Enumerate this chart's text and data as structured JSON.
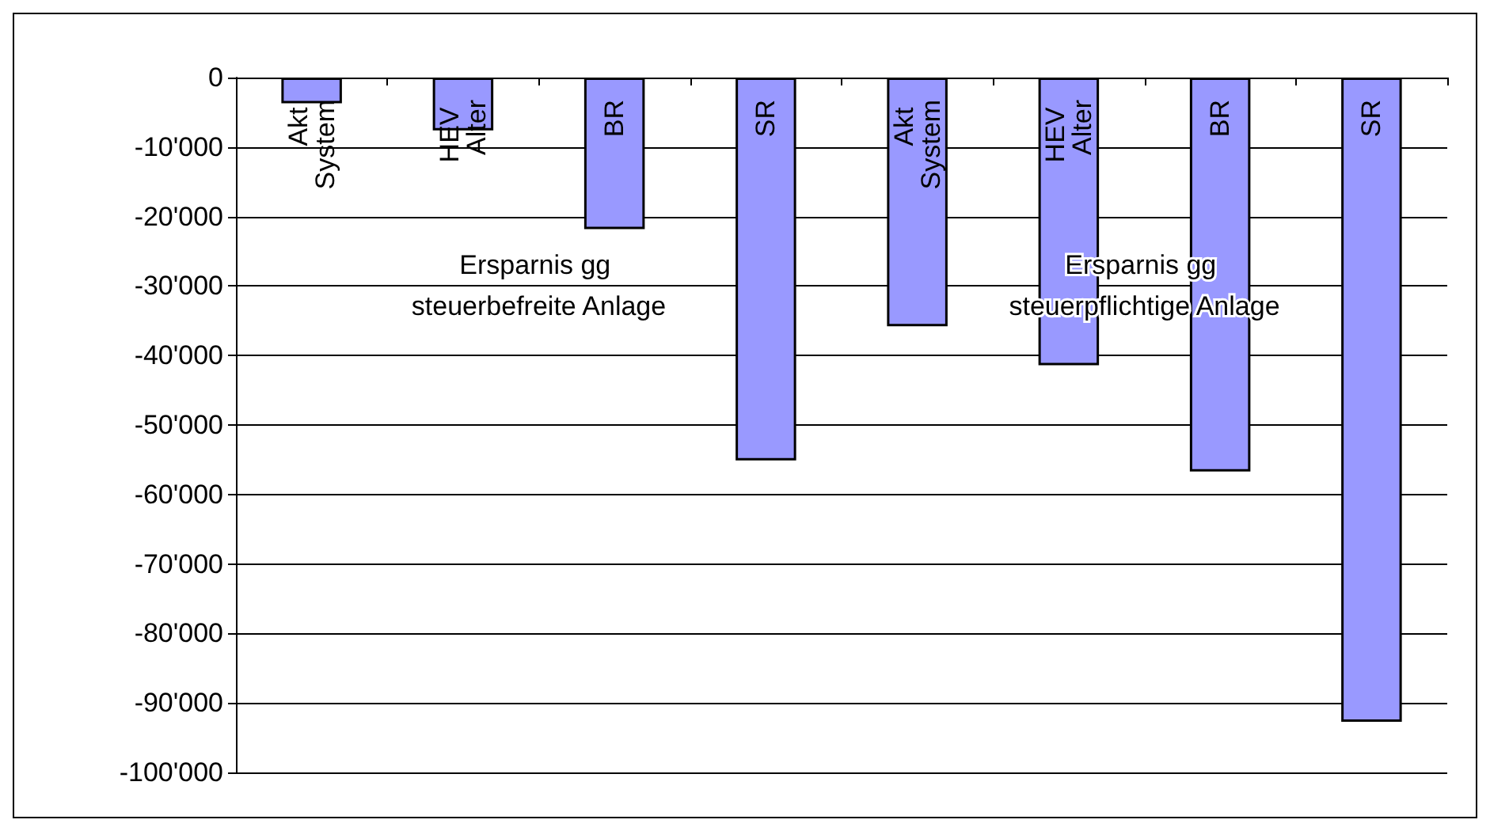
{
  "chart_data": {
    "type": "bar",
    "categories": [
      "Akt System",
      "HEV Alter",
      "BR",
      "SR",
      "Akt System",
      "HEV Alter",
      "BR",
      "SR"
    ],
    "values": [
      -3700,
      -7600,
      -21800,
      -55100,
      -35800,
      -41400,
      -56700,
      -92700
    ],
    "color": "#9999ff",
    "ylim": [
      -100000,
      0
    ],
    "yticks": [
      {
        "value": -100000,
        "label": "-100'000"
      },
      {
        "value": -90000,
        "label": "-90'000"
      },
      {
        "value": -80000,
        "label": "-80'000"
      },
      {
        "value": -70000,
        "label": "-70'000"
      },
      {
        "value": -60000,
        "label": "-60'000"
      },
      {
        "value": -50000,
        "label": "-50'000"
      },
      {
        "value": -40000,
        "label": "-40'000"
      },
      {
        "value": -30000,
        "label": "-30'000"
      },
      {
        "value": -20000,
        "label": "-20'000"
      },
      {
        "value": -10000,
        "label": "-10'000"
      },
      {
        "value": 0,
        "label": "0"
      }
    ],
    "annotations": [
      "Ersparnis gg steuerbefreite Anlage",
      "Ersparnis gg steuerpflichtige Anlage"
    ],
    "grid": "y"
  }
}
